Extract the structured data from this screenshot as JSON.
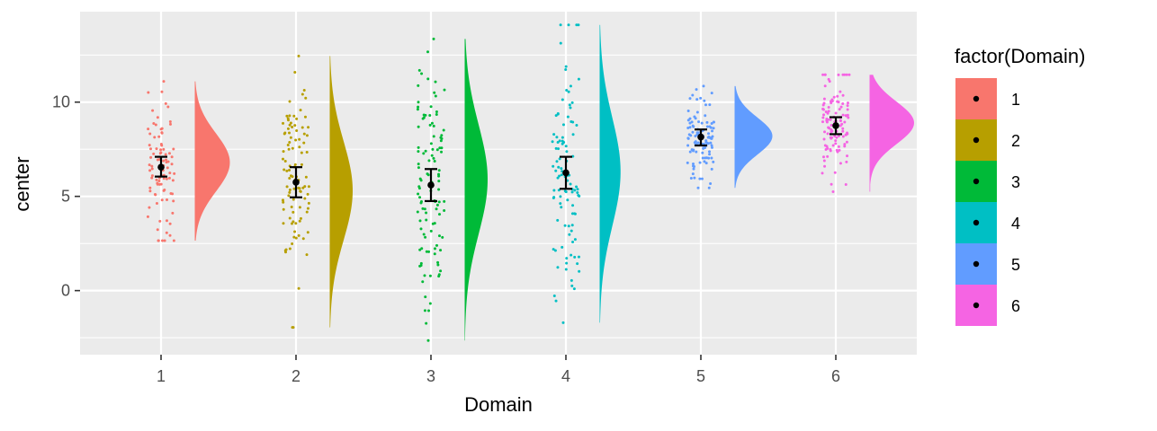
{
  "chart_data": {
    "type": "raincloud",
    "title": "",
    "xlabel": "Domain",
    "ylabel": "center",
    "xlim": [
      0.4,
      6.6
    ],
    "ylim": [
      -3.4,
      14.8
    ],
    "x_ticks": [
      "1",
      "2",
      "3",
      "4",
      "5",
      "6"
    ],
    "y_ticks": [
      0,
      5,
      10
    ],
    "y_minor": [
      -2.5,
      2.5,
      7.5,
      12.5
    ],
    "legend": {
      "title": "factor(Domain)",
      "position": "right",
      "entries": [
        "1",
        "2",
        "3",
        "4",
        "5",
        "6"
      ]
    },
    "series": [
      {
        "name": "1",
        "color": "#F8766D",
        "mean": 6.55,
        "ci": [
          6.05,
          7.1
        ],
        "min": 2.65,
        "max": 11.1,
        "mode": 6.8,
        "peak_width": 0.26,
        "n": 90,
        "sd": 1.9
      },
      {
        "name": "2",
        "color": "#B79F00",
        "mean": 5.75,
        "ci": [
          4.95,
          6.55
        ],
        "min": -1.95,
        "max": 12.45,
        "mode": 5.3,
        "peak_width": 0.17,
        "n": 100,
        "sd": 2.9
      },
      {
        "name": "3",
        "color": "#00BA38",
        "mean": 5.6,
        "ci": [
          4.75,
          6.45
        ],
        "min": -2.65,
        "max": 13.35,
        "mode": 5.9,
        "peak_width": 0.17,
        "n": 110,
        "sd": 3.5
      },
      {
        "name": "4",
        "color": "#00BFC4",
        "mean": 6.25,
        "ci": [
          5.4,
          7.1
        ],
        "min": -1.7,
        "max": 14.1,
        "mode": 6.3,
        "peak_width": 0.155,
        "n": 100,
        "sd": 3.6
      },
      {
        "name": "5",
        "color": "#619CFF",
        "mean": 8.15,
        "ci": [
          7.7,
          8.55
        ],
        "min": 5.45,
        "max": 10.85,
        "mode": 8.2,
        "peak_width": 0.28,
        "n": 110,
        "sd": 1.2
      },
      {
        "name": "6",
        "color": "#F564E3",
        "mean": 8.75,
        "ci": [
          8.3,
          9.2
        ],
        "min": 5.25,
        "max": 11.45,
        "mode": 8.9,
        "peak_width": 0.33,
        "n": 110,
        "sd": 1.25
      }
    ]
  }
}
